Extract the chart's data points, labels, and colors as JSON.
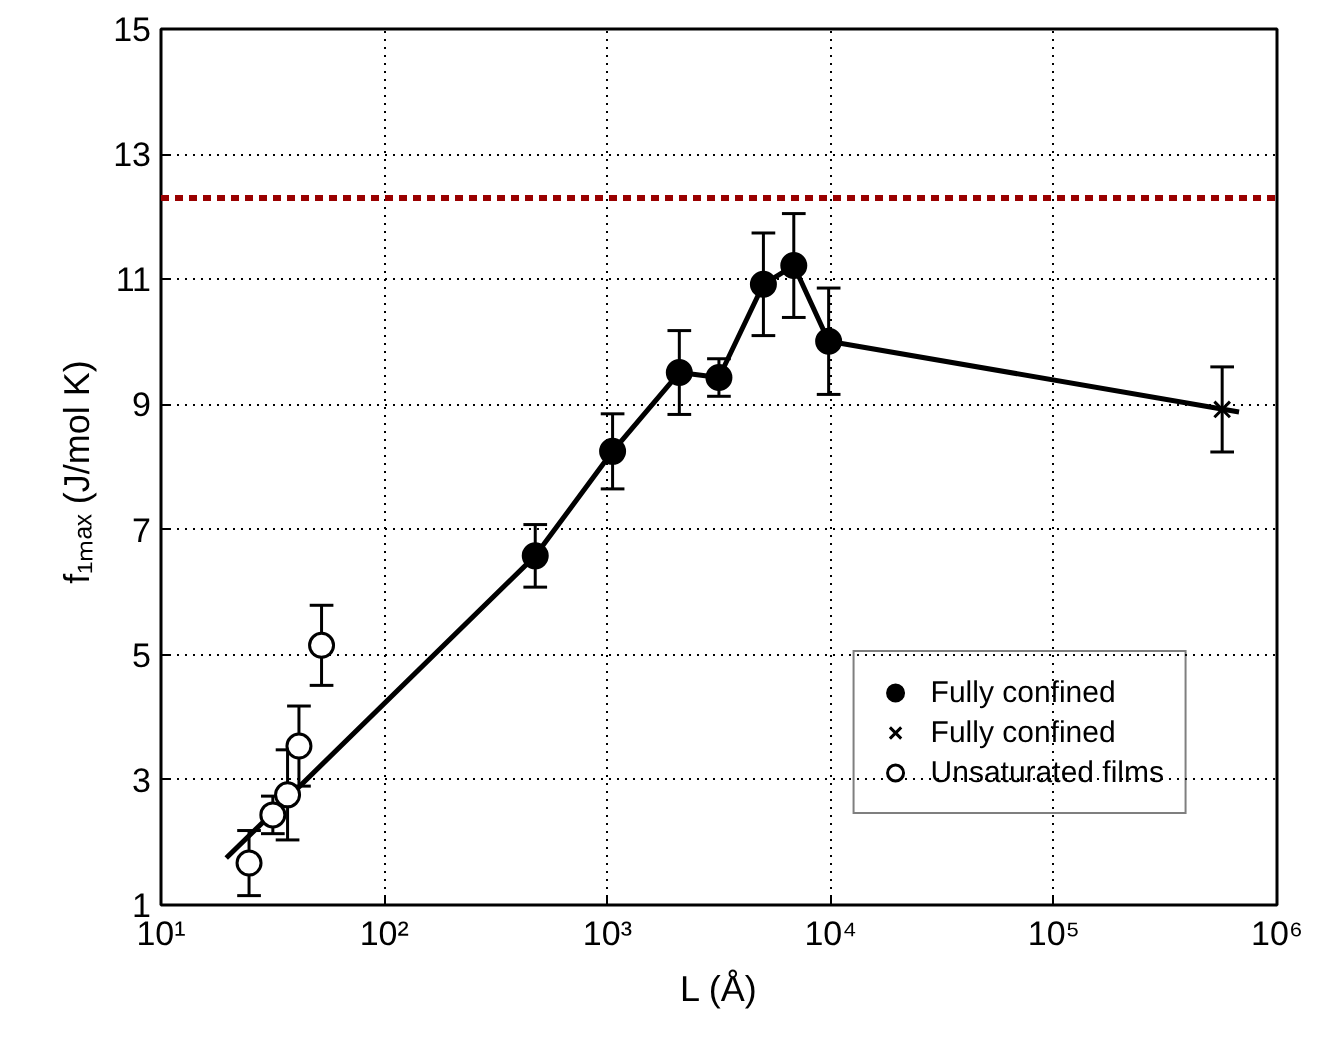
{
  "chart_data": {
    "type": "scatter",
    "xlabel": "L (Å)",
    "ylabel": "f₁ₘₐₓ  (J/mol K)",
    "log": "x",
    "grid": true,
    "legend": "bottom right",
    "xlim": [
      10,
      1000000
    ],
    "ylim": [
      1,
      15
    ],
    "xticks": [
      {
        "value": 10,
        "label": "10¹"
      },
      {
        "value": 100,
        "label": "10²"
      },
      {
        "value": 1000,
        "label": "10³"
      },
      {
        "value": 10000,
        "label": "10⁴"
      },
      {
        "value": 100000,
        "label": "10⁵"
      },
      {
        "value": 1000000,
        "label": "10⁶"
      }
    ],
    "yticks": [
      1,
      3,
      5,
      7,
      9,
      11,
      13,
      15
    ],
    "series": [
      {
        "type": "line",
        "color": "#000000",
        "marker": "none",
        "line_style": "solid",
        "x": [
          19.6,
          475,
          1055,
          2100,
          3160,
          5000,
          6840,
          9800,
          676000
        ],
        "values": [
          1.75,
          6.58,
          8.25,
          9.51,
          9.43,
          10.92,
          11.22,
          10.01,
          8.88
        ]
      },
      {
        "name": "Fully confined",
        "color": "#000000",
        "marker": "circle",
        "x": [
          475,
          1055,
          2100,
          3160,
          5000,
          6840,
          9800
        ],
        "values": [
          6.58,
          8.25,
          9.51,
          9.43,
          10.92,
          11.22,
          10.01
        ],
        "errors": [
          0.5,
          0.6,
          0.67,
          0.3,
          0.82,
          0.83,
          0.85
        ]
      },
      {
        "name": "Fully confined",
        "color": "#000000",
        "marker": "cross",
        "x": [
          568000
        ],
        "values": [
          8.92
        ],
        "errors": [
          0.68
        ]
      },
      {
        "name": "Unsaturated films",
        "color": "#ffffff",
        "marker": "circle",
        "x": [
          24.8,
          31.7,
          36.9,
          41.5,
          52.4
        ],
        "values": [
          1.67,
          2.44,
          2.76,
          3.54,
          5.15
        ],
        "errors": [
          0.52,
          0.3,
          0.72,
          0.64,
          0.64
        ]
      }
    ],
    "ref_lines": [
      {
        "axis": "y",
        "value": 12.3,
        "color": "#990000",
        "line_style": "dashed"
      }
    ]
  }
}
